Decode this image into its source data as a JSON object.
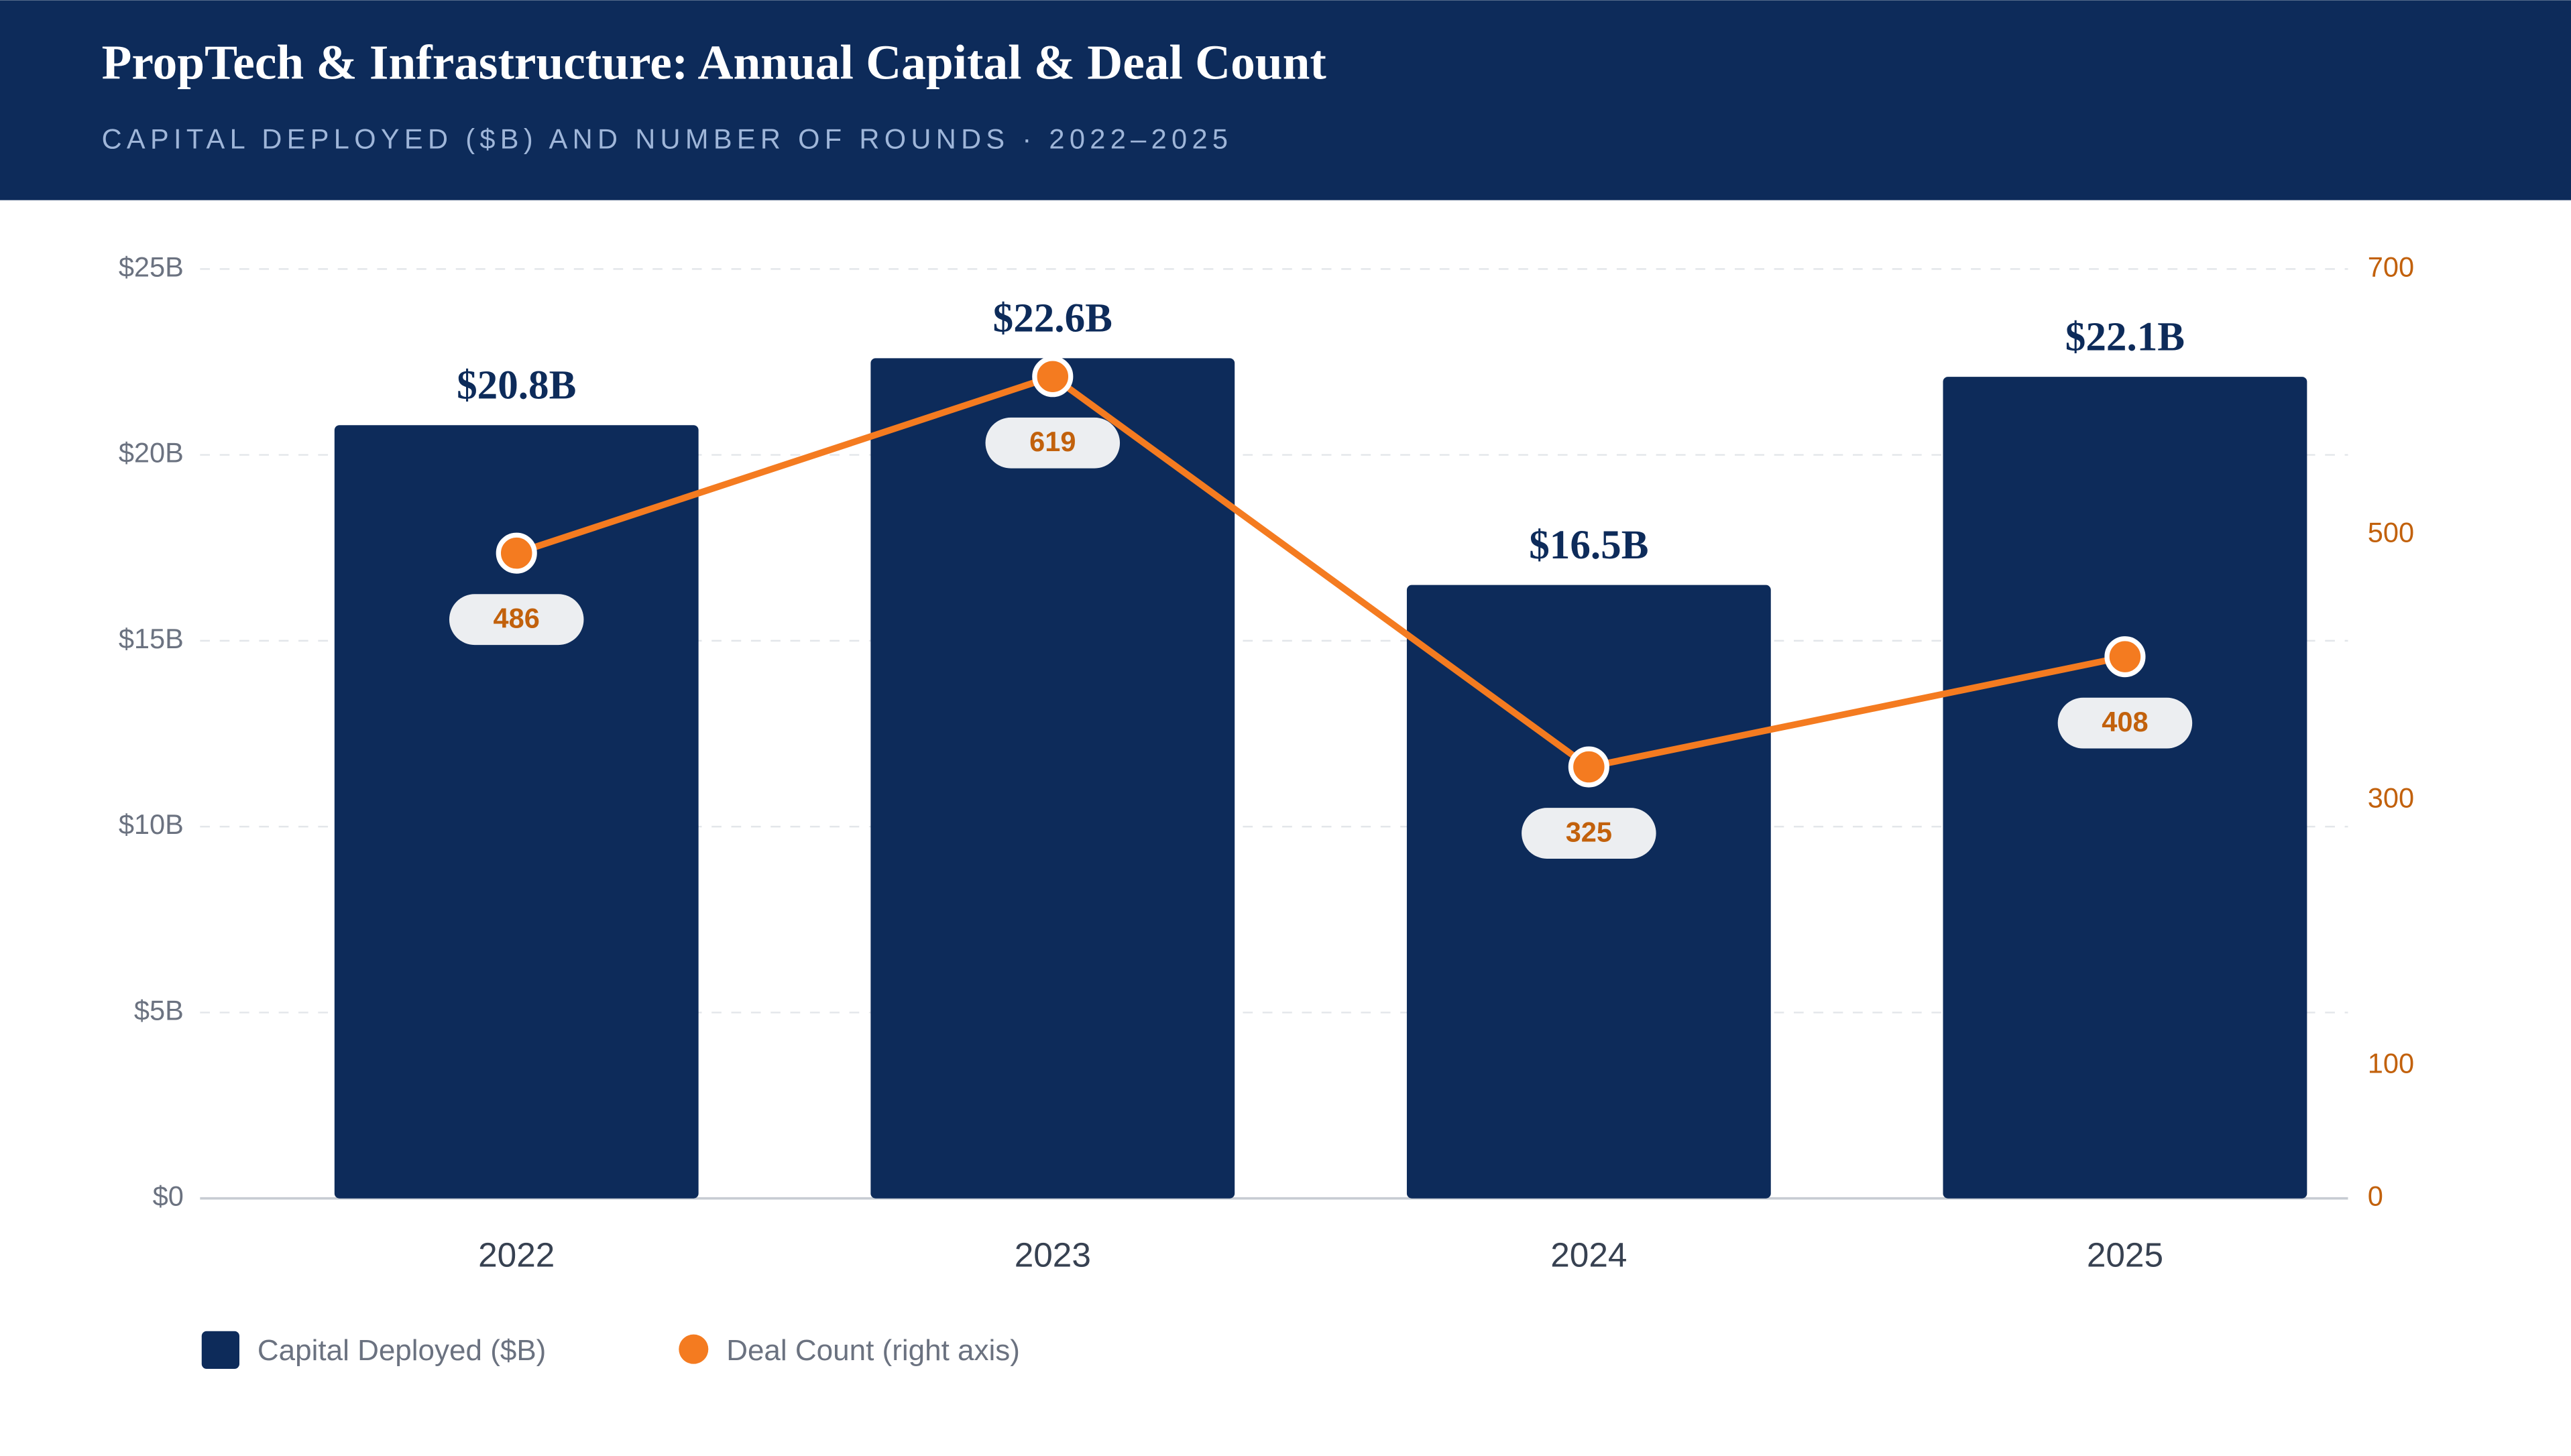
{
  "chart_data": {
    "type": "bar_line",
    "title": "PropTech & Infrastructure: Annual Capital & Deal Count",
    "subtitle": "CAPITAL DEPLOYED ($B) AND NUMBER OF ROUNDS · 2022–2025",
    "categories": [
      "2022",
      "2023",
      "2024",
      "2025"
    ],
    "series": [
      {
        "name": "Capital Deployed ($B)",
        "color": "#0d2b5a",
        "values": [
          20.8,
          22.6,
          16.5,
          22.1
        ],
        "value_labels": [
          "$20.8B",
          "$22.6B",
          "$16.5B",
          "$22.1B"
        ]
      },
      {
        "name": "Deal Count (right axis)",
        "color": "#f47b20",
        "axis": "y2",
        "values": [
          486,
          619,
          325,
          408
        ]
      }
    ],
    "ylim": [
      0,
      25
    ],
    "yticks": [
      {
        "value": 0,
        "label": "$0"
      },
      {
        "value": 5,
        "label": "$5B"
      },
      {
        "value": 10,
        "label": "$10B"
      },
      {
        "value": 15,
        "label": "$15B"
      },
      {
        "value": 20,
        "label": "$20B"
      },
      {
        "value": 25,
        "label": "$25B"
      }
    ],
    "y2lim": [
      0,
      700
    ],
    "y2ticks": [
      0,
      100,
      300,
      500,
      700
    ],
    "grid": true
  }
}
